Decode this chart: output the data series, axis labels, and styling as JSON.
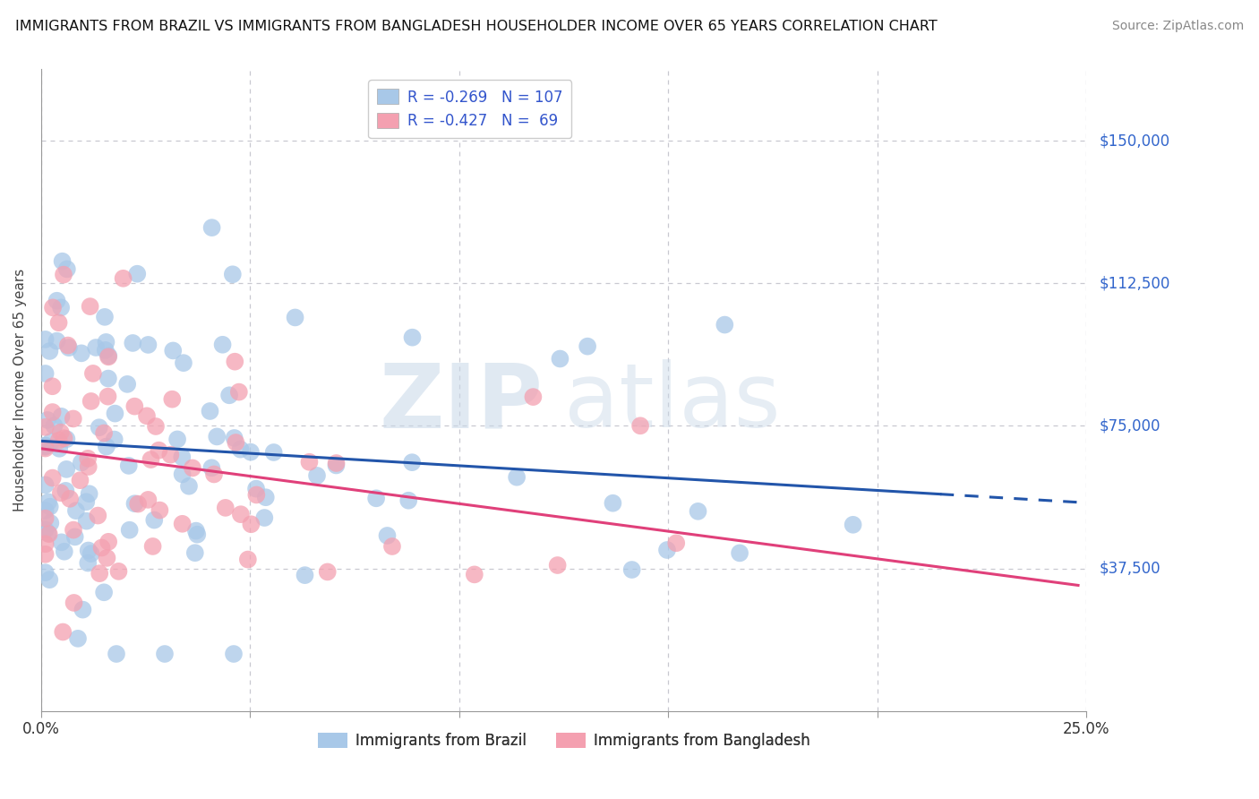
{
  "title": "IMMIGRANTS FROM BRAZIL VS IMMIGRANTS FROM BANGLADESH HOUSEHOLDER INCOME OVER 65 YEARS CORRELATION CHART",
  "source": "Source: ZipAtlas.com",
  "ylabel": "Householder Income Over 65 years",
  "xlim": [
    0.0,
    0.25
  ],
  "ylim": [
    0,
    168750
  ],
  "xticks": [
    0.0,
    0.05,
    0.1,
    0.15,
    0.2,
    0.25
  ],
  "ytick_positions": [
    0,
    37500,
    75000,
    112500,
    150000
  ],
  "ytick_labels": [
    "",
    "$37,500",
    "$75,000",
    "$112,500",
    "$150,000"
  ],
  "brazil_color": "#a8c8e8",
  "bangladesh_color": "#f4a0b0",
  "brazil_line_color": "#2255aa",
  "bangladesh_line_color": "#e0407a",
  "brazil_R": -0.269,
  "brazil_N": 107,
  "bangladesh_R": -0.427,
  "bangladesh_N": 69,
  "legend_label_brazil": "Immigrants from Brazil",
  "legend_label_bangladesh": "Immigrants from Bangladesh",
  "watermark_zip": "ZIP",
  "watermark_atlas": "atlas",
  "background_color": "#ffffff",
  "grid_color": "#c8c8d0",
  "brazil_line_intercept": 71000,
  "brazil_line_slope": -65000,
  "brazil_line_solid_end": 0.215,
  "brazil_line_dashed_end": 0.248,
  "bangladesh_line_intercept": 69000,
  "bangladesh_line_slope": -145000,
  "bangladesh_line_end": 0.248
}
